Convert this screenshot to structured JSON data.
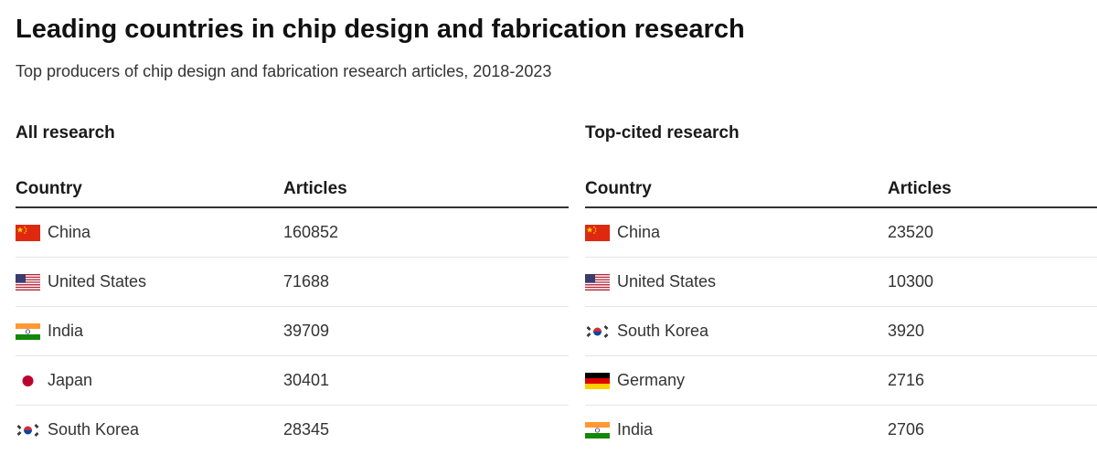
{
  "header": {
    "title": "Leading countries in chip design and fabrication research",
    "subtitle": "Top producers of chip design and fabrication research articles, 2018-2023"
  },
  "chart_data": {
    "type": "table",
    "title": "Leading countries in chip design and fabrication research",
    "subtitle": "Top producers of chip design and fabrication research articles, 2018-2023",
    "tables": [
      {
        "title": "All research",
        "columns": [
          "Country",
          "Articles"
        ],
        "rows": [
          {
            "country": "China",
            "articles": "160852",
            "flag": "china-flag"
          },
          {
            "country": "United States",
            "articles": "71688",
            "flag": "us-flag"
          },
          {
            "country": "India",
            "articles": "39709",
            "flag": "india-flag"
          },
          {
            "country": "Japan",
            "articles": "30401",
            "flag": "japan-flag"
          },
          {
            "country": "South Korea",
            "articles": "28345",
            "flag": "south-korea-flag"
          }
        ]
      },
      {
        "title": "Top-cited research",
        "columns": [
          "Country",
          "Articles"
        ],
        "rows": [
          {
            "country": "China",
            "articles": "23520",
            "flag": "china-flag"
          },
          {
            "country": "United States",
            "articles": "10300",
            "flag": "us-flag"
          },
          {
            "country": "South Korea",
            "articles": "3920",
            "flag": "south-korea-flag"
          },
          {
            "country": "Germany",
            "articles": "2716",
            "flag": "germany-flag"
          },
          {
            "country": "India",
            "articles": "2706",
            "flag": "india-flag"
          }
        ]
      }
    ]
  },
  "colors": {
    "china_red": "#de2910",
    "china_yellow": "#ffde00",
    "us_red": "#b22234",
    "us_blue": "#3c3b6e",
    "india_saffron": "#ff9933",
    "india_green": "#138808",
    "india_chakra": "#000080",
    "japan_red": "#bc002d",
    "korea_red": "#cd2e3a",
    "korea_blue": "#0047a0",
    "germany_black": "#000000",
    "germany_red": "#dd0000",
    "germany_gold": "#ffce00"
  }
}
